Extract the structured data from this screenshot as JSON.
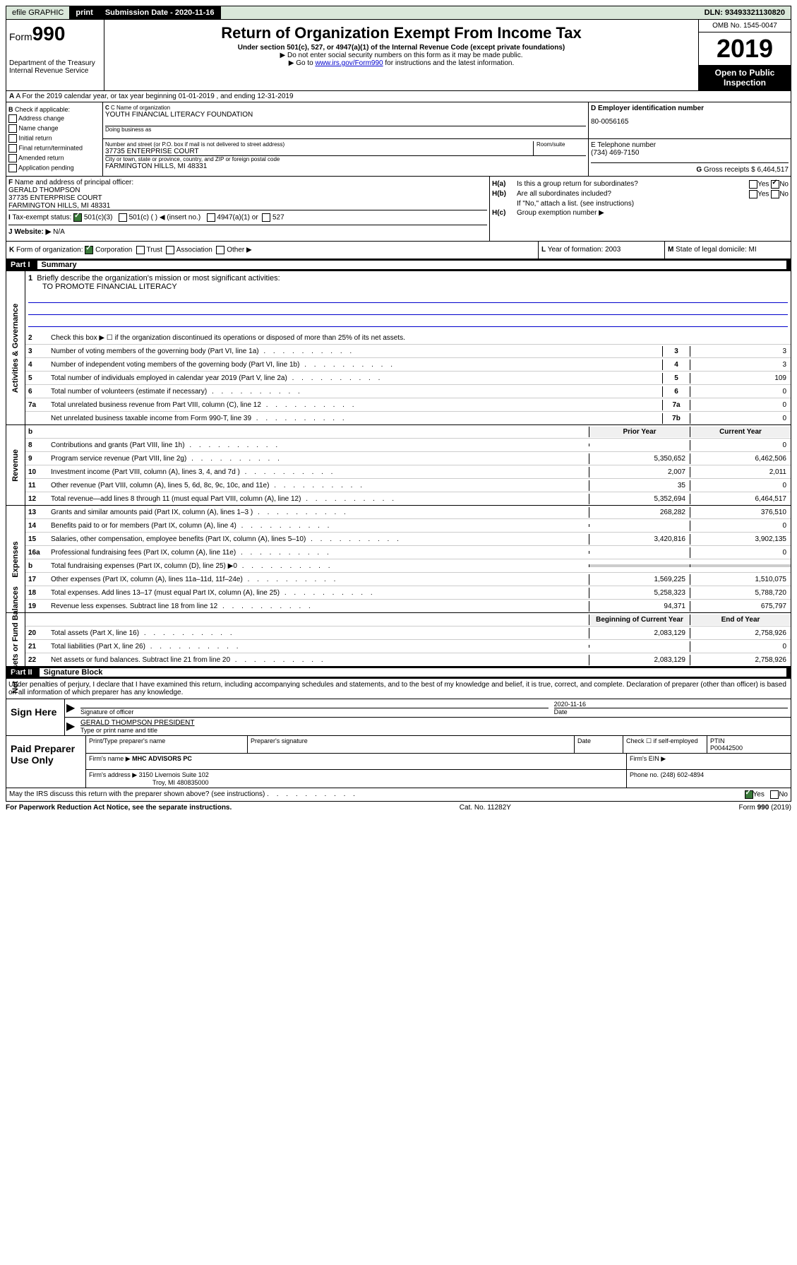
{
  "top_bar": {
    "efile": "efile GRAPHIC",
    "print": "print",
    "submission_label": "Submission Date - 2020-11-16",
    "dln": "DLN: 93493321130820"
  },
  "header": {
    "form_prefix": "Form",
    "form_number": "990",
    "dept": "Department of the Treasury",
    "irs": "Internal Revenue Service",
    "title": "Return of Organization Exempt From Income Tax",
    "subtitle": "Under section 501(c), 527, or 4947(a)(1) of the Internal Revenue Code (except private foundations)",
    "note1": "▶ Do not enter social security numbers on this form as it may be made public.",
    "note2_pre": "▶ Go to ",
    "note2_link": "www.irs.gov/Form990",
    "note2_post": " for instructions and the latest information.",
    "omb": "OMB No. 1545-0047",
    "year": "2019",
    "open_public": "Open to Public Inspection"
  },
  "row_a": "A For the 2019 calendar year, or tax year beginning 01-01-2019   , and ending 12-31-2019",
  "section_b": {
    "label": "B Check if applicable:",
    "items": [
      "Address change",
      "Name change",
      "Initial return",
      "Final return/terminated",
      "Amended return",
      "Application pending"
    ]
  },
  "section_c": {
    "name_label": "C Name of organization",
    "name": "YOUTH FINANCIAL LITERACY FOUNDATION",
    "dba_label": "Doing business as",
    "addr_label": "Number and street (or P.O. box if mail is not delivered to street address)",
    "room_label": "Room/suite",
    "addr": "37735 ENTERPRISE COURT",
    "city_label": "City or town, state or province, country, and ZIP or foreign postal code",
    "city": "FARMINGTON HILLS, MI  48331"
  },
  "section_d": {
    "label": "D Employer identification number",
    "ein": "80-0056165"
  },
  "section_e": {
    "label": "E Telephone number",
    "phone": "(734) 469-7150"
  },
  "section_g": {
    "label": "G Gross receipts $",
    "amount": "6,464,517"
  },
  "section_f": {
    "label": "F  Name and address of principal officer:",
    "name": "GERALD THOMPSON",
    "addr1": "37735 ENTERPRISE COURT",
    "addr2": "FARMINGTON HILLS, MI  48331"
  },
  "section_h": {
    "ha": "Is this a group return for subordinates?",
    "hb": "Are all subordinates included?",
    "hb_note": "If \"No,\" attach a list. (see instructions)",
    "hc": "Group exemption number ▶"
  },
  "row_i": {
    "label": "I  Tax-exempt status:",
    "opts": [
      "501(c)(3)",
      "501(c) (  ) ◀ (insert no.)",
      "4947(a)(1) or",
      "527"
    ]
  },
  "row_j": {
    "label": "J  Website: ▶",
    "value": "N/A"
  },
  "row_k": {
    "label": "K Form of organization:",
    "opts": [
      "Corporation",
      "Trust",
      "Association",
      "Other ▶"
    ],
    "l_label": "L Year of formation:",
    "l_val": "2003",
    "m_label": "M State of legal domicile:",
    "m_val": "MI"
  },
  "part1": {
    "num": "Part I",
    "title": "Summary"
  },
  "summary": {
    "s1": {
      "num": "1",
      "text": "Briefly describe the organization's mission or most significant activities:",
      "mission": "TO PROMOTE FINANCIAL LITERACY"
    },
    "s2": {
      "num": "2",
      "text": "Check this box ▶ ☐  if the organization discontinued its operations or disposed of more than 25% of its net assets."
    },
    "rows": [
      {
        "n": "3",
        "t": "Number of voting members of the governing body (Part VI, line 1a)",
        "box": "3",
        "v2": "3"
      },
      {
        "n": "4",
        "t": "Number of independent voting members of the governing body (Part VI, line 1b)",
        "box": "4",
        "v2": "3"
      },
      {
        "n": "5",
        "t": "Total number of individuals employed in calendar year 2019 (Part V, line 2a)",
        "box": "5",
        "v2": "109"
      },
      {
        "n": "6",
        "t": "Total number of volunteers (estimate if necessary)",
        "box": "6",
        "v2": "0"
      },
      {
        "n": "7a",
        "t": "Total unrelated business revenue from Part VIII, column (C), line 12",
        "box": "7a",
        "v2": "0"
      },
      {
        "n": "",
        "t": "Net unrelated business taxable income from Form 990-T, line 39",
        "box": "7b",
        "v2": "0"
      }
    ],
    "col_headers": {
      "b": "b",
      "prior": "Prior Year",
      "current": "Current Year",
      "beginning": "Beginning of Current Year",
      "end": "End of Year"
    },
    "revenue": [
      {
        "n": "8",
        "t": "Contributions and grants (Part VIII, line 1h)",
        "v1": "",
        "v2": "0"
      },
      {
        "n": "9",
        "t": "Program service revenue (Part VIII, line 2g)",
        "v1": "5,350,652",
        "v2": "6,462,506"
      },
      {
        "n": "10",
        "t": "Investment income (Part VIII, column (A), lines 3, 4, and 7d )",
        "v1": "2,007",
        "v2": "2,011"
      },
      {
        "n": "11",
        "t": "Other revenue (Part VIII, column (A), lines 5, 6d, 8c, 9c, 10c, and 11e)",
        "v1": "35",
        "v2": "0"
      },
      {
        "n": "12",
        "t": "Total revenue—add lines 8 through 11 (must equal Part VIII, column (A), line 12)",
        "v1": "5,352,694",
        "v2": "6,464,517"
      }
    ],
    "expenses": [
      {
        "n": "13",
        "t": "Grants and similar amounts paid (Part IX, column (A), lines 1–3 )",
        "v1": "268,282",
        "v2": "376,510"
      },
      {
        "n": "14",
        "t": "Benefits paid to or for members (Part IX, column (A), line 4)",
        "v1": "",
        "v2": "0"
      },
      {
        "n": "15",
        "t": "Salaries, other compensation, employee benefits (Part IX, column (A), lines 5–10)",
        "v1": "3,420,816",
        "v2": "3,902,135"
      },
      {
        "n": "16a",
        "t": "Professional fundraising fees (Part IX, column (A), line 11e)",
        "v1": "",
        "v2": "0"
      },
      {
        "n": "b",
        "t": "Total fundraising expenses (Part IX, column (D), line 25) ▶0",
        "v1": "",
        "v2": "",
        "grey": true
      },
      {
        "n": "17",
        "t": "Other expenses (Part IX, column (A), lines 11a–11d, 11f–24e)",
        "v1": "1,569,225",
        "v2": "1,510,075"
      },
      {
        "n": "18",
        "t": "Total expenses. Add lines 13–17 (must equal Part IX, column (A), line 25)",
        "v1": "5,258,323",
        "v2": "5,788,720"
      },
      {
        "n": "19",
        "t": "Revenue less expenses. Subtract line 18 from line 12",
        "v1": "94,371",
        "v2": "675,797"
      }
    ],
    "net_assets": [
      {
        "n": "20",
        "t": "Total assets (Part X, line 16)",
        "v1": "2,083,129",
        "v2": "2,758,926"
      },
      {
        "n": "21",
        "t": "Total liabilities (Part X, line 26)",
        "v1": "",
        "v2": "0"
      },
      {
        "n": "22",
        "t": "Net assets or fund balances. Subtract line 21 from line 20",
        "v1": "2,083,129",
        "v2": "2,758,926"
      }
    ]
  },
  "part2": {
    "num": "Part II",
    "title": "Signature Block"
  },
  "sig_declaration": "Under penalties of perjury, I declare that I have examined this return, including accompanying schedules and statements, and to the best of my knowledge and belief, it is true, correct, and complete. Declaration of preparer (other than officer) is based on all information of which preparer has any knowledge.",
  "sign": {
    "label": "Sign Here",
    "sig_label": "Signature of officer",
    "date": "2020-11-16",
    "date_label": "Date",
    "name": "GERALD THOMPSON  PRESIDENT",
    "name_label": "Type or print name and title"
  },
  "paid": {
    "label": "Paid Preparer Use Only",
    "h1": "Print/Type preparer's name",
    "h2": "Preparer's signature",
    "h3": "Date",
    "h4_check": "Check ☐ if self-employed",
    "h5": "PTIN",
    "ptin": "P00442500",
    "firm_label": "Firm's name    ▶",
    "firm": "MHC ADVISORS PC",
    "ein_label": "Firm's EIN ▶",
    "addr_label": "Firm's address ▶",
    "addr": "3150 Livernois Suite 102",
    "addr2": "Troy, MI  480835000",
    "phone_label": "Phone no.",
    "phone": "(248) 602-4894"
  },
  "discuss": "May the IRS discuss this return with the preparer shown above? (see instructions)",
  "footer": {
    "paperwork": "For Paperwork Reduction Act Notice, see the separate instructions.",
    "cat": "Cat. No. 11282Y",
    "form": "Form 990 (2019)"
  }
}
